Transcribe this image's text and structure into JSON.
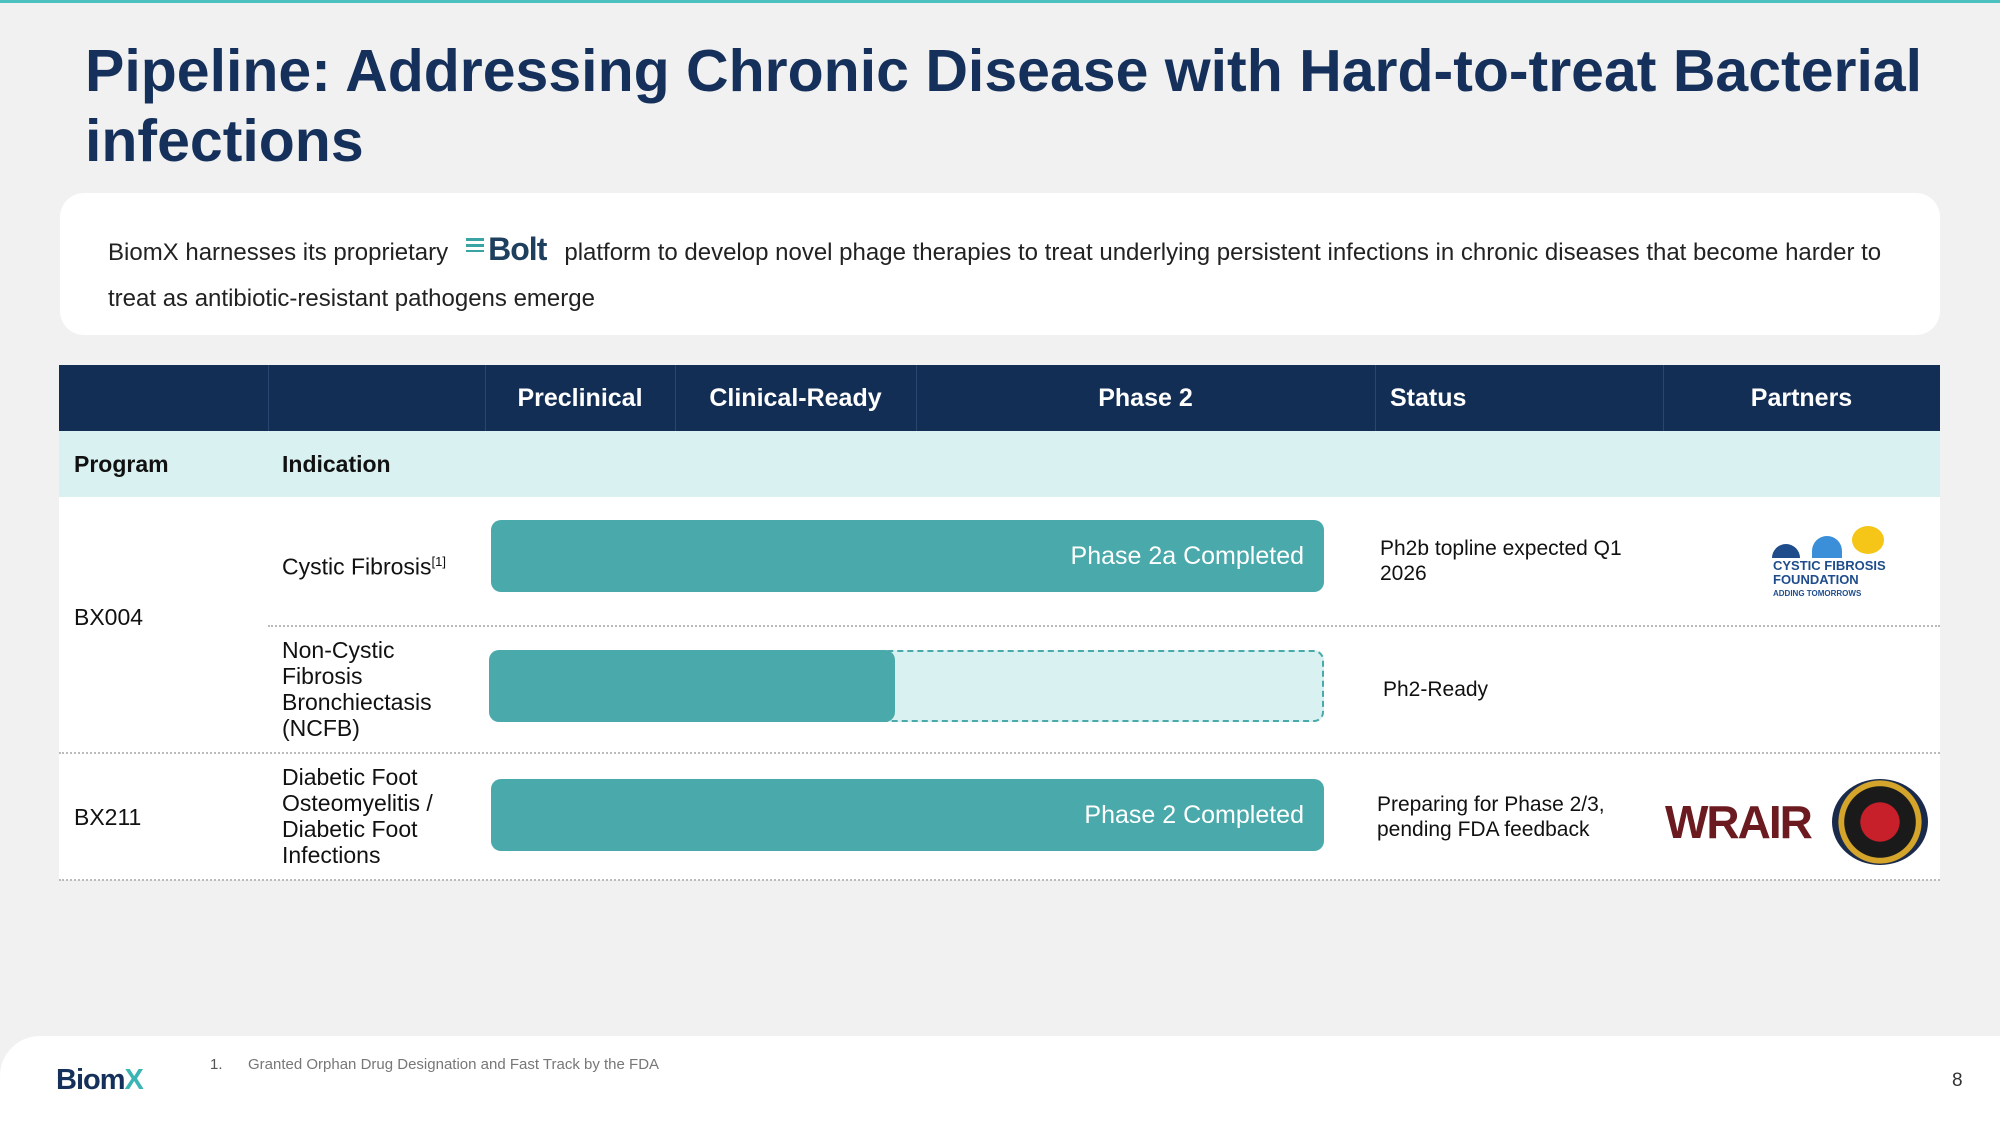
{
  "title": "Pipeline: Addressing Chronic Disease with Hard-to-treat Bacterial infections",
  "intro": {
    "before": "BiomX harnesses its proprietary",
    "logo": "Bolt",
    "after": "platform to develop novel phage therapies to treat underlying persistent infections in chronic diseases that become harder to treat as antibiotic-resistant pathogens emerge"
  },
  "table": {
    "headers": [
      "Preclinical",
      "Clinical-Ready",
      "Phase 2",
      "Status",
      "Partners"
    ],
    "subheaders": [
      "Program",
      "Indication"
    ],
    "rows": [
      {
        "program": "BX004",
        "indication": "Cystic Fibrosis",
        "note": "[1]",
        "bar_label": "Phase 2a Completed",
        "status": "Ph2b topline expected Q1 2026",
        "partner": {
          "line1": "CYSTIC FIBROSIS",
          "line2": "FOUNDATION",
          "line3": "ADDING TOMORROWS"
        }
      },
      {
        "indication": "Non-Cystic Fibrosis Bronchiectasis (NCFB)",
        "status": "Ph2-Ready"
      },
      {
        "program": "BX211",
        "indication": "Diabetic Foot Osteomyelitis / Diabetic Foot Infections",
        "bar_label": "Phase 2 Completed",
        "status": "Preparing for Phase 2/3, pending FDA feedback",
        "partner": {
          "name": "WRAIR"
        }
      }
    ]
  },
  "footnote": {
    "number": "1.",
    "text": "Granted Orphan Drug Designation and Fast Track by the FDA"
  },
  "logo": {
    "brand": "Biom",
    "accent": "X"
  },
  "page_number": "8"
}
